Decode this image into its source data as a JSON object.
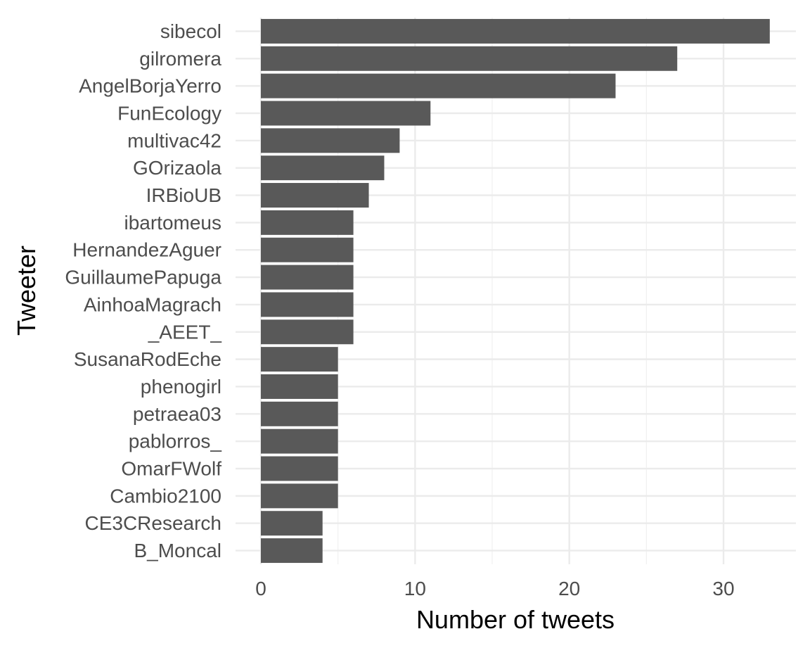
{
  "chart_data": {
    "type": "bar",
    "orientation": "horizontal",
    "title": "",
    "xlabel": "Number of tweets",
    "ylabel": "Tweeter",
    "xlim": [
      0,
      34.65
    ],
    "xticks": [
      0,
      10,
      20,
      30
    ],
    "xtick_labels": [
      "0",
      "10",
      "20",
      "30"
    ],
    "grid": true,
    "legend": "none",
    "bar_color": "#595959",
    "categories": [
      "sibecol",
      "gilromera",
      "AngelBorjaYerro",
      "FunEcology",
      "multivac42",
      "GOrizaola",
      "IRBioUB",
      "ibartomeus",
      "HernandezAguer",
      "GuillaumePapuga",
      "AinhoaMagrach",
      "_AEET_",
      "SusanaRodEche",
      "phenogirl",
      "petraea03",
      "pablorros_",
      "OmarFWolf",
      "Cambio2100",
      "CE3CResearch",
      "B_Moncal"
    ],
    "values": [
      33,
      27,
      23,
      11,
      9,
      8,
      7,
      6,
      6,
      6,
      6,
      6,
      5,
      5,
      5,
      5,
      5,
      5,
      4,
      4
    ]
  }
}
